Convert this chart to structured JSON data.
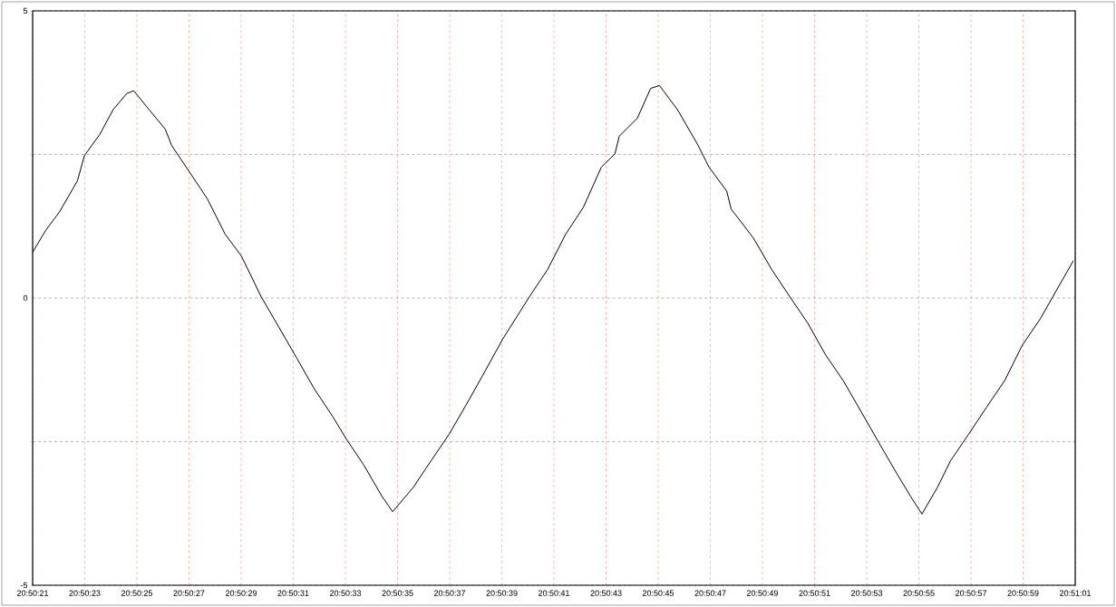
{
  "chart_data": {
    "type": "line",
    "x": [
      20.839167,
      20.839311,
      20.839453,
      20.839644,
      20.839719,
      20.839883,
      20.840025,
      20.840169,
      20.840244,
      20.840408,
      20.840581,
      20.840647,
      20.840836,
      20.841028,
      20.841219,
      20.841392,
      20.8416,
      20.841792,
      20.841983,
      20.842172,
      20.842364,
      20.842508,
      20.842697,
      20.842889,
      20.843003,
      20.843222,
      20.843414,
      20.843606,
      20.843797,
      20.843986,
      20.844178,
      20.844464,
      20.844656,
      20.844847,
      20.845036,
      20.845228,
      20.845372,
      20.845419,
      20.845611,
      20.845753,
      20.845847,
      20.846039,
      20.846258,
      20.846375,
      20.846564,
      20.846611,
      20.84685,
      20.847042,
      20.847233,
      20.847425,
      20.847614,
      20.847806,
      20.847997,
      20.848186,
      20.848378,
      20.848522,
      20.848644,
      20.848808,
      20.84895,
      20.849142,
      20.849333,
      20.849525,
      20.849714,
      20.849906,
      20.850097,
      20.850258
    ],
    "series": [
      {
        "color": "#000000",
        "values": [
          0.8,
          1.19,
          1.5,
          2.04,
          2.48,
          2.85,
          3.28,
          3.56,
          3.61,
          3.28,
          2.94,
          2.66,
          2.2,
          1.73,
          1.11,
          0.73,
          0.03,
          -0.51,
          -1.05,
          -1.59,
          -2.06,
          -2.45,
          -2.91,
          -3.45,
          -3.72,
          -3.3,
          -2.83,
          -2.37,
          -1.83,
          -1.28,
          -0.71,
          0.03,
          0.5,
          1.11,
          1.58,
          2.28,
          2.51,
          2.82,
          3.13,
          3.65,
          3.7,
          3.28,
          2.66,
          2.28,
          1.86,
          1.55,
          1.04,
          0.5,
          0.03,
          -0.43,
          -0.98,
          -1.44,
          -1.98,
          -2.52,
          -3.06,
          -3.45,
          -3.76,
          -3.3,
          -2.83,
          -2.37,
          -1.9,
          -1.44,
          -0.82,
          -0.36,
          0.19,
          0.65
        ]
      }
    ],
    "xlim": [
      20.839167,
      20.850278
    ],
    "ylim": [
      -5,
      5
    ],
    "xticks": [
      {
        "value": 20.839167,
        "label": "20:50:21"
      },
      {
        "value": 20.839722,
        "label": "20:50:23"
      },
      {
        "value": 20.840278,
        "label": "20:50:25"
      },
      {
        "value": 20.840833,
        "label": "20:50:27"
      },
      {
        "value": 20.841389,
        "label": "20:50:29"
      },
      {
        "value": 20.841944,
        "label": "20:50:31"
      },
      {
        "value": 20.8425,
        "label": "20:50:33"
      },
      {
        "value": 20.843056,
        "label": "20:50:35"
      },
      {
        "value": 20.843611,
        "label": "20:50:37"
      },
      {
        "value": 20.844167,
        "label": "20:50:39"
      },
      {
        "value": 20.844722,
        "label": "20:50:41"
      },
      {
        "value": 20.845278,
        "label": "20:50:43"
      },
      {
        "value": 20.845833,
        "label": "20:50:45"
      },
      {
        "value": 20.846389,
        "label": "20:50:47"
      },
      {
        "value": 20.846944,
        "label": "20:50:49"
      },
      {
        "value": 20.8475,
        "label": "20:50:51"
      },
      {
        "value": 20.848056,
        "label": "20:50:53"
      },
      {
        "value": 20.848611,
        "label": "20:50:55"
      },
      {
        "value": 20.849167,
        "label": "20:50:57"
      },
      {
        "value": 20.849722,
        "label": "20:50:59"
      },
      {
        "value": 20.850278,
        "label": "20:51:01"
      }
    ],
    "yticks": [
      -5,
      {
        "value": -2.5,
        "label": null
      },
      0,
      {
        "value": 2.5,
        "label": null
      },
      5
    ],
    "grid": true,
    "line_style": "solid"
  }
}
